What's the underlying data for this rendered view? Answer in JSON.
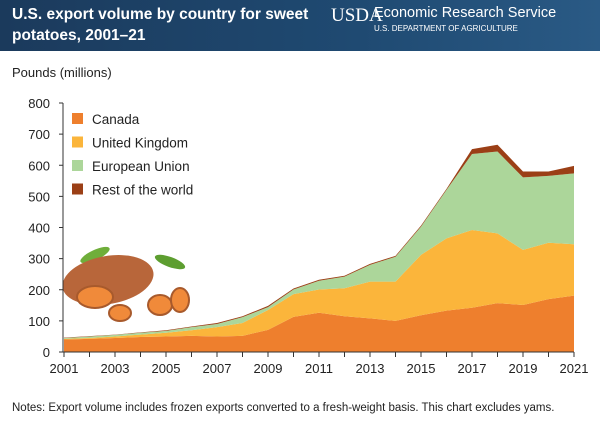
{
  "header": {
    "title": "U.S. export volume by country for sweet potatoes, 2001–21",
    "logo_text": "USDA",
    "org": "Economic Research Service",
    "dept": "U.S. DEPARTMENT OF AGRICULTURE"
  },
  "notes": "Notes: Export volume includes frozen exports converted to a fresh-weight basis. This chart excludes yams.",
  "chart_data": {
    "type": "area",
    "stacked": true,
    "title": "U.S. export volume by country for sweet potatoes, 2001–21",
    "ylabel": "Pounds (millions)",
    "xlabel": "",
    "ylim": [
      0,
      800
    ],
    "yticks": [
      0,
      100,
      200,
      300,
      400,
      500,
      600,
      700,
      800
    ],
    "xlim": [
      2001,
      2021
    ],
    "xticks": [
      2001,
      2003,
      2005,
      2007,
      2009,
      2011,
      2013,
      2015,
      2017,
      2019,
      2021
    ],
    "x": [
      2001,
      2002,
      2003,
      2004,
      2005,
      2006,
      2007,
      2008,
      2009,
      2010,
      2011,
      2012,
      2013,
      2014,
      2015,
      2016,
      2017,
      2018,
      2019,
      2020,
      2021
    ],
    "legend_position": "top-left",
    "grid": false,
    "series": [
      {
        "name": "Canada",
        "color": "#ee7f2d",
        "values": [
          40,
          42,
          45,
          48,
          50,
          52,
          50,
          52,
          71,
          113,
          126,
          115,
          108,
          100,
          118,
          133,
          142,
          157,
          151,
          170,
          181
        ]
      },
      {
        "name": "United Kingdom",
        "color": "#fbb53b",
        "values": [
          2,
          3,
          5,
          8,
          12,
          18,
          30,
          41,
          64,
          73,
          75,
          90,
          118,
          126,
          194,
          232,
          250,
          224,
          177,
          181,
          165
        ]
      },
      {
        "name": "European Union",
        "color": "#acd69a",
        "values": [
          3,
          5,
          5,
          6,
          6,
          10,
          10,
          19,
          9,
          15,
          28,
          37,
          54,
          80,
          91,
          156,
          244,
          263,
          233,
          215,
          228
        ]
      },
      {
        "name": "Rest of the world",
        "color": "#9b3f16",
        "values": [
          1,
          1,
          1,
          1,
          2,
          2,
          3,
          3,
          4,
          3,
          3,
          3,
          3,
          3,
          3,
          3,
          16,
          22,
          19,
          14,
          24
        ]
      }
    ]
  }
}
